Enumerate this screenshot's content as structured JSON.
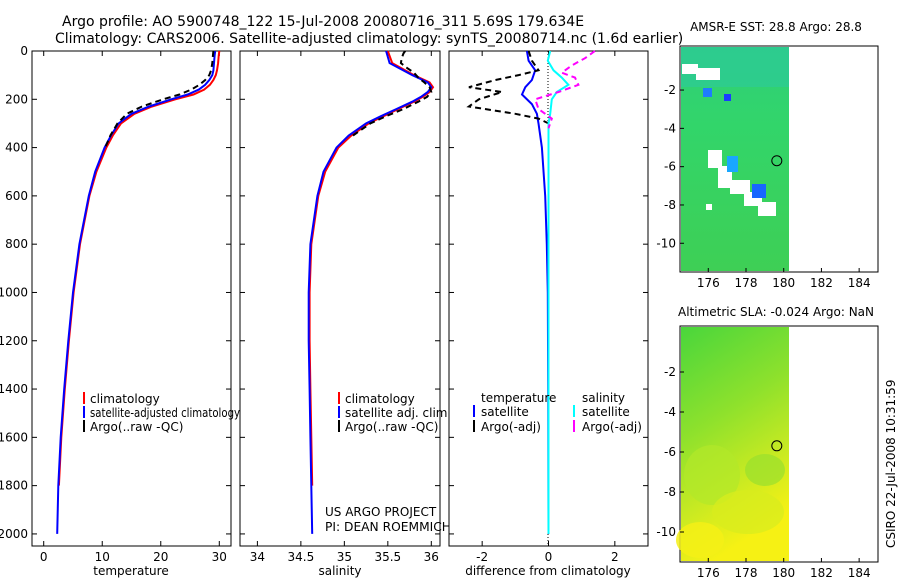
{
  "header": {
    "line1": "Argo profile: AO 5900748_122 15-Jul-2008 20080716_311 5.69S 179.634E",
    "line2": "Climatology: CARS2006. Satellite-adjusted climatology: synTS_20080714.nc (1.6d earlier)"
  },
  "credit": {
    "project": "US ARGO PROJECT",
    "pi": "PI: DEAN ROEMMICH",
    "side": "CSIRO 22-Jul-2008 10:31:59"
  },
  "colors": {
    "climatology": "#ff0000",
    "satellite": "#0000ff",
    "argo": "#000000",
    "satellite_salinity": "#00ffff",
    "argo_salinity": "#ff00ff"
  },
  "chart_data": [
    {
      "id": "temperature",
      "type": "line",
      "xlabel": "temperature",
      "ylabel": "",
      "xlim": [
        -2,
        32
      ],
      "ylim": [
        2050,
        0
      ],
      "xticks": [
        0,
        10,
        20,
        30
      ],
      "yticks": [
        0,
        200,
        400,
        600,
        800,
        1000,
        1200,
        1400,
        1600,
        1800,
        2000
      ],
      "legend": [
        "climatology",
        "satellite-adjusted climatology",
        "Argo(..raw -QC)"
      ],
      "series": [
        {
          "name": "climatology",
          "color": "#ff0000",
          "dash": "",
          "depth": [
            0,
            20,
            50,
            80,
            100,
            120,
            140,
            160,
            180,
            200,
            230,
            260,
            300,
            350,
            400,
            500,
            600,
            800,
            1000,
            1200,
            1400,
            1600,
            1800
          ],
          "values": [
            30,
            29.9,
            29.8,
            29.6,
            29.4,
            29.0,
            28.4,
            27.4,
            25.6,
            22.5,
            18.5,
            15.5,
            13.2,
            11.8,
            10.7,
            9.0,
            7.8,
            6.2,
            5.1,
            4.3,
            3.6,
            3.0,
            2.6
          ]
        },
        {
          "name": "satellite-adjusted climatology",
          "color": "#0000ff",
          "dash": "",
          "depth": [
            0,
            20,
            50,
            80,
            100,
            120,
            140,
            160,
            180,
            200,
            230,
            260,
            300,
            350,
            400,
            500,
            600,
            800,
            1000,
            1200,
            1400,
            1600,
            1800,
            2000
          ],
          "values": [
            29.3,
            29.2,
            29.1,
            29.0,
            28.8,
            28.3,
            27.6,
            26.5,
            24.6,
            21.8,
            18.0,
            15.0,
            12.8,
            11.5,
            10.4,
            8.8,
            7.7,
            6.1,
            5.0,
            4.2,
            3.5,
            2.9,
            2.5,
            2.3
          ]
        },
        {
          "name": "Argo(..raw -QC)",
          "color": "#000000",
          "dash": "6 4",
          "depth": [
            0,
            20,
            50,
            80,
            100,
            120,
            140,
            160,
            180,
            200,
            230,
            260,
            300,
            350,
            400
          ],
          "values": [
            29.0,
            28.9,
            28.8,
            28.6,
            28.3,
            27.6,
            26.6,
            25.2,
            23.2,
            20.4,
            16.8,
            14.2,
            12.6,
            11.4,
            10.5
          ]
        }
      ]
    },
    {
      "id": "salinity",
      "type": "line",
      "xlabel": "salinity",
      "ylabel": "",
      "xlim": [
        33.8,
        36.1
      ],
      "ylim": [
        2050,
        0
      ],
      "xticks": [
        34,
        34.5,
        35,
        35.5,
        36
      ],
      "legend": [
        "climatology",
        "satellite adj. clim.",
        "Argo(..raw -QC)"
      ],
      "series": [
        {
          "name": "climatology",
          "color": "#ff0000",
          "dash": "",
          "depth": [
            0,
            50,
            100,
            130,
            150,
            170,
            190,
            210,
            240,
            270,
            300,
            350,
            400,
            500,
            600,
            800,
            1000,
            1200,
            1400,
            1600,
            1800
          ],
          "values": [
            35.5,
            35.55,
            35.8,
            35.98,
            36.02,
            35.98,
            35.9,
            35.8,
            35.62,
            35.45,
            35.28,
            35.08,
            34.93,
            34.78,
            34.7,
            34.62,
            34.6,
            34.6,
            34.61,
            34.62,
            34.63
          ]
        },
        {
          "name": "satellite adj. clim.",
          "color": "#0000ff",
          "dash": "",
          "depth": [
            0,
            50,
            100,
            130,
            150,
            170,
            190,
            210,
            240,
            270,
            300,
            350,
            400,
            500,
            600,
            800,
            1000,
            1200,
            1400,
            1600,
            1800,
            2000
          ],
          "values": [
            35.48,
            35.52,
            35.78,
            35.96,
            36.0,
            35.96,
            35.88,
            35.78,
            35.6,
            35.42,
            35.25,
            35.05,
            34.91,
            34.76,
            34.69,
            34.61,
            34.59,
            34.59,
            34.6,
            34.61,
            34.62,
            34.63
          ]
        },
        {
          "name": "Argo(..raw -QC)",
          "color": "#000000",
          "dash": "6 4",
          "depth": [
            0,
            10,
            30,
            50,
            70,
            90,
            110,
            130,
            150,
            170,
            190,
            210,
            240,
            270,
            300,
            350
          ],
          "values": [
            35.7,
            35.68,
            35.66,
            35.65,
            35.72,
            35.8,
            35.85,
            35.92,
            35.98,
            36.0,
            35.95,
            35.85,
            35.68,
            35.48,
            35.3,
            35.1
          ]
        }
      ]
    },
    {
      "id": "difference",
      "type": "line",
      "xlabel": "difference from climatology",
      "ylabel": "",
      "xlim": [
        -3,
        3
      ],
      "ylim": [
        2050,
        0
      ],
      "xticks": [
        -2,
        0,
        2
      ],
      "legend_temperature": [
        "temperature",
        "satellite",
        "Argo(-adj)"
      ],
      "legend_salinity": [
        "salinity",
        "satellite",
        "Argo(-adj)"
      ],
      "series": [
        {
          "name": "temperature satellite",
          "color": "#0000ff",
          "dash": "",
          "depth": [
            0,
            40,
            80,
            120,
            150,
            180,
            220,
            260,
            300,
            400,
            600,
            800,
            1000,
            1400,
            2000
          ],
          "values": [
            -0.65,
            -0.6,
            -0.4,
            -0.5,
            -0.7,
            -0.8,
            -0.5,
            -0.35,
            -0.3,
            -0.2,
            -0.1,
            -0.05,
            -0.02,
            -0.01,
            0
          ]
        },
        {
          "name": "temperature Argo(-adj)",
          "color": "#000000",
          "dash": "6 4",
          "depth": [
            0,
            40,
            80,
            100,
            120,
            150,
            170,
            200,
            230,
            260,
            280,
            300
          ],
          "values": [
            -0.6,
            -0.5,
            -0.3,
            -0.9,
            -1.6,
            -2.4,
            -1.4,
            -2.1,
            -2.4,
            -1.0,
            -0.3,
            0
          ]
        },
        {
          "name": "salinity satellite",
          "color": "#00ffff",
          "dash": "",
          "depth": [
            0,
            40,
            80,
            110,
            140,
            170,
            200,
            260,
            300,
            500,
            800,
            1200,
            2000
          ],
          "values": [
            0.05,
            -0.02,
            0.15,
            0.4,
            0.6,
            0.25,
            0.1,
            0.05,
            0,
            0,
            0,
            0,
            0
          ]
        },
        {
          "name": "salinity Argo(-adj)",
          "color": "#ff00ff",
          "dash": "6 4",
          "depth": [
            0,
            30,
            60,
            90,
            110,
            140,
            170,
            200,
            240,
            280,
            320
          ],
          "values": [
            1.4,
            1.1,
            0.7,
            0.4,
            0.8,
            0.9,
            0.3,
            -0.4,
            -0.3,
            0.1,
            0
          ]
        }
      ]
    },
    {
      "id": "sst_map",
      "type": "heatmap",
      "title": "AMSR-E SST: 28.8  Argo: 28.8",
      "xlim": [
        174.5,
        185
      ],
      "ylim": [
        -11.5,
        0.3
      ],
      "xticks": [
        176,
        178,
        180,
        182,
        184
      ],
      "yticks": [
        -2,
        -4,
        -6,
        -8,
        -10
      ],
      "data_extent_lon": [
        174.5,
        180
      ],
      "marker": {
        "lon": 179.634,
        "lat": -5.69
      }
    },
    {
      "id": "sla_map",
      "type": "heatmap",
      "title": "Altimetric SLA: -0.024  Argo: NaN",
      "xlim": [
        174.5,
        185
      ],
      "ylim": [
        -11.5,
        0.3
      ],
      "xticks": [
        176,
        178,
        180,
        182,
        184
      ],
      "yticks": [
        -2,
        -4,
        -6,
        -8,
        -10
      ],
      "data_extent_lon": [
        174.5,
        180
      ],
      "marker": {
        "lon": 179.634,
        "lat": -5.69
      }
    }
  ]
}
